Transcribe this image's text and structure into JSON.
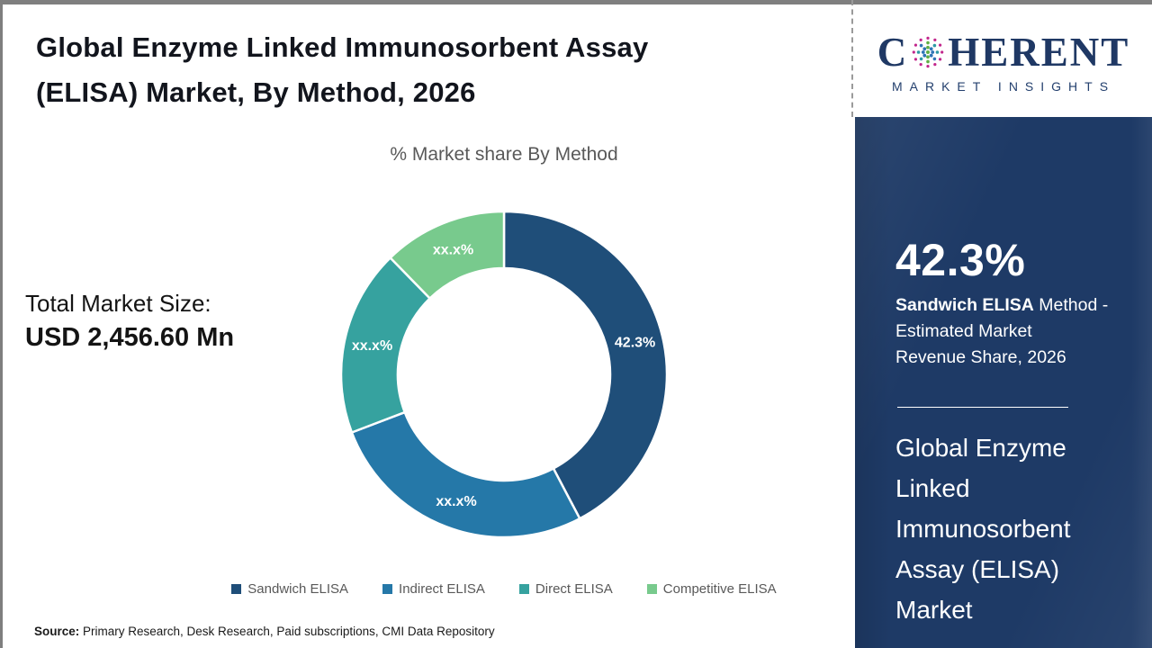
{
  "header": {
    "title": "Global Enzyme Linked Immunosorbent Assay (ELISA) Market, By Method, 2026"
  },
  "logo": {
    "brand_first_letter": "C",
    "brand_rest": "HERENT",
    "tagline": "MARKET INSIGHTS",
    "brand_color": "#1f3864"
  },
  "chart_data": {
    "type": "pie",
    "subtype": "donut",
    "title": "% Market share By Method",
    "categories": [
      "Sandwich ELISA",
      "Indirect ELISA",
      "Direct ELISA",
      "Competitive ELISA"
    ],
    "labels": [
      "42.3%",
      "xx.x%",
      "xx.x%",
      "xx.x%"
    ],
    "values_pct_estimated": [
      42.3,
      26.9,
      18.5,
      12.3
    ],
    "colors": [
      "#1f4e79",
      "#2578a8",
      "#36a29f",
      "#78ca8d"
    ],
    "legend_position": "bottom",
    "start_angle_deg": 0,
    "direction": "clockwise"
  },
  "totals": {
    "label": "Total Market Size:",
    "value": "USD 2,456.60 Mn"
  },
  "sidebar": {
    "stat_value": "42.3%",
    "stat_desc_bold": "Sandwich ELISA",
    "stat_desc_line1_rest": " Method -",
    "stat_desc_line2": "Estimated Market",
    "stat_desc_line3": "Revenue Share, 2026",
    "market_name": "Global Enzyme Linked Immunosorbent Assay (ELISA) Market",
    "background_color": "#1e3a66"
  },
  "footer": {
    "source_label": "Source:",
    "source_text": " Primary Research, Desk Research, Paid subscriptions, CMI Data Repository"
  }
}
